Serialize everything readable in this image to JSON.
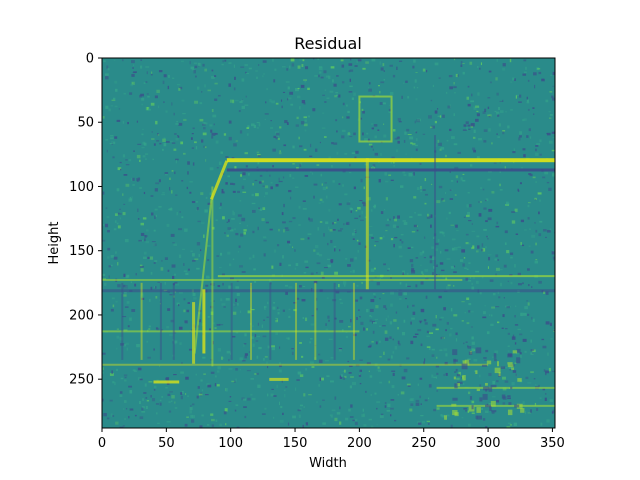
{
  "chart_data": {
    "type": "heatmap",
    "title": "Residual",
    "xlabel": "Width",
    "ylabel": "Height",
    "xlim": [
      0,
      352
    ],
    "ylim": [
      288,
      0
    ],
    "xticks": [
      0,
      50,
      100,
      150,
      200,
      250,
      300,
      350
    ],
    "yticks": [
      0,
      50,
      100,
      150,
      200,
      250
    ],
    "grid": false,
    "colormap": "viridis",
    "image_width": 352,
    "image_height": 288
  },
  "colors": {
    "background": "#2a8b8a",
    "dark": "#3b4d8a",
    "bright": "#d8e219",
    "mid": "#34a38a"
  }
}
